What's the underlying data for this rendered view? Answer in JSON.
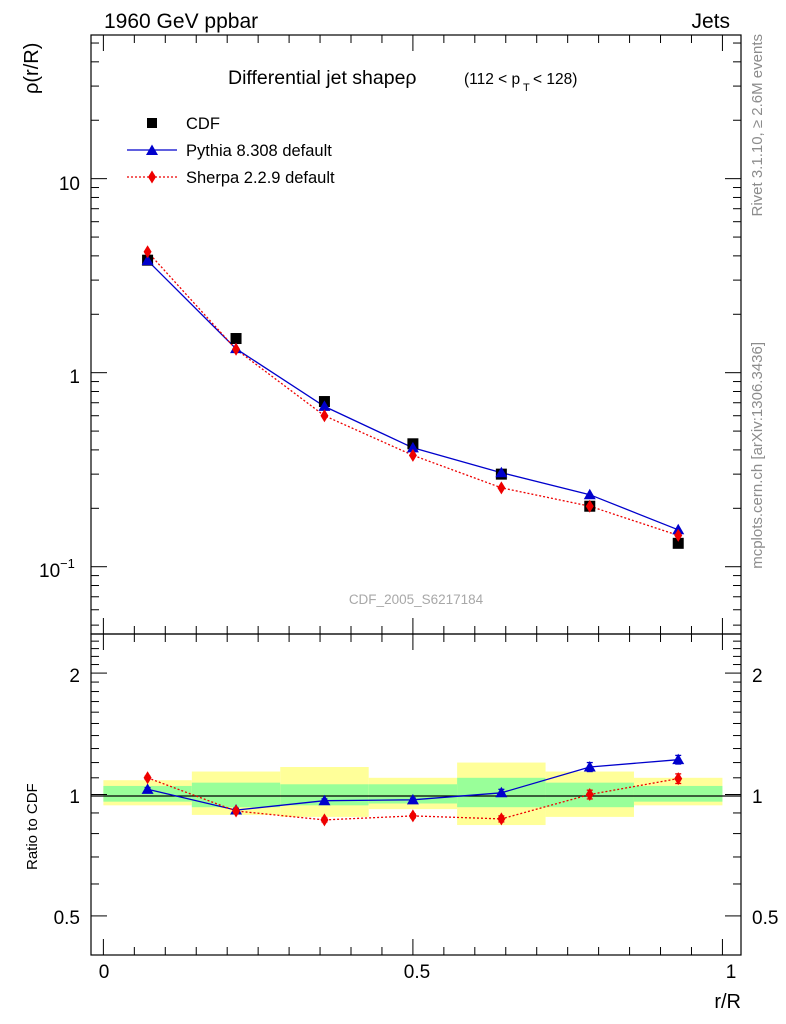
{
  "header": {
    "left_label": "1960 GeV ppbar",
    "right_label": "Jets"
  },
  "side_labels": {
    "rivet": "Rivet 3.1.10, ≥ 2.6M events",
    "mcplots": "mcplots.cern.ch [arXiv:1306.3436]"
  },
  "watermark": "CDF_2005_S6217184",
  "chart_data": {
    "type": "line",
    "title": {
      "main": "Differential jet shapeρ",
      "pt_open": "(112 < p",
      "pt_sub": "T",
      "pt_close": " < 128)"
    },
    "x": [
      0.0714,
      0.2143,
      0.3571,
      0.5,
      0.6429,
      0.7857,
      0.9286
    ],
    "xlabel": "r/R",
    "xlim": [
      -0.02,
      1.03
    ],
    "xticks": [
      "0",
      "0.5",
      "1"
    ],
    "main_panel": {
      "ylabel": "ρ(r/R)",
      "yscale": "log",
      "ylim": [
        0.045,
        55
      ],
      "ytick_labels": {
        "tenth_base": "10",
        "tenth_exp": "−1",
        "one": "1",
        "ten": "10"
      },
      "legend_position": "top-left",
      "series": [
        {
          "name": "CDF",
          "style": "data",
          "color": "#000000",
          "values": [
            3.8,
            1.5,
            0.71,
            0.43,
            0.3,
            0.205,
            0.132
          ]
        },
        {
          "name": "Pythia 8.308 default",
          "style": "solid",
          "color": "#0000cc",
          "values": [
            3.78,
            1.33,
            0.67,
            0.41,
            0.305,
            0.235,
            0.155
          ]
        },
        {
          "name": "Sherpa 2.2.9 default",
          "style": "dotted",
          "color": "#ee0000",
          "values": [
            4.2,
            1.32,
            0.6,
            0.375,
            0.255,
            0.205,
            0.145
          ]
        }
      ]
    },
    "ratio_panel": {
      "ylabel": "Ratio to CDF",
      "yscale": "log",
      "ylim": [
        0.4,
        2.5
      ],
      "ytick_labels": [
        "0.5",
        "1",
        "2"
      ],
      "band_inner_color": "#99ff99",
      "band_outer_color": "#ffff99",
      "bands": [
        {
          "xmin": 0.0,
          "xmax": 0.1429,
          "inner": [
            0.96,
            1.05
          ],
          "outer": [
            0.94,
            1.085
          ]
        },
        {
          "xmin": 0.1429,
          "xmax": 0.2857,
          "inner": [
            0.93,
            1.07
          ],
          "outer": [
            0.89,
            1.14
          ]
        },
        {
          "xmin": 0.2857,
          "xmax": 0.4286,
          "inner": [
            0.94,
            1.06
          ],
          "outer": [
            0.88,
            1.17
          ]
        },
        {
          "xmin": 0.4286,
          "xmax": 0.5714,
          "inner": [
            0.95,
            1.06
          ],
          "outer": [
            0.92,
            1.1
          ]
        },
        {
          "xmin": 0.5714,
          "xmax": 0.7143,
          "inner": [
            0.93,
            1.1
          ],
          "outer": [
            0.84,
            1.2
          ]
        },
        {
          "xmin": 0.7143,
          "xmax": 0.8571,
          "inner": [
            0.93,
            1.07
          ],
          "outer": [
            0.88,
            1.14
          ]
        },
        {
          "xmin": 0.8571,
          "xmax": 1.0,
          "inner": [
            0.96,
            1.05
          ],
          "outer": [
            0.94,
            1.1
          ]
        }
      ],
      "series": [
        {
          "name": "Pythia 8.308 default",
          "color": "#0000cc",
          "values": [
            1.03,
            0.915,
            0.965,
            0.97,
            1.01,
            1.17,
            1.22
          ],
          "errors": [
            0.01,
            0.01,
            0.01,
            0.01,
            0.02,
            0.03,
            0.03
          ]
        },
        {
          "name": "Sherpa 2.2.9 default",
          "color": "#ee0000",
          "values": [
            1.1,
            0.91,
            0.865,
            0.885,
            0.87,
            1.0,
            1.095
          ],
          "errors": [
            0.01,
            0.01,
            0.01,
            0.01,
            0.015,
            0.025,
            0.03
          ]
        }
      ]
    }
  }
}
